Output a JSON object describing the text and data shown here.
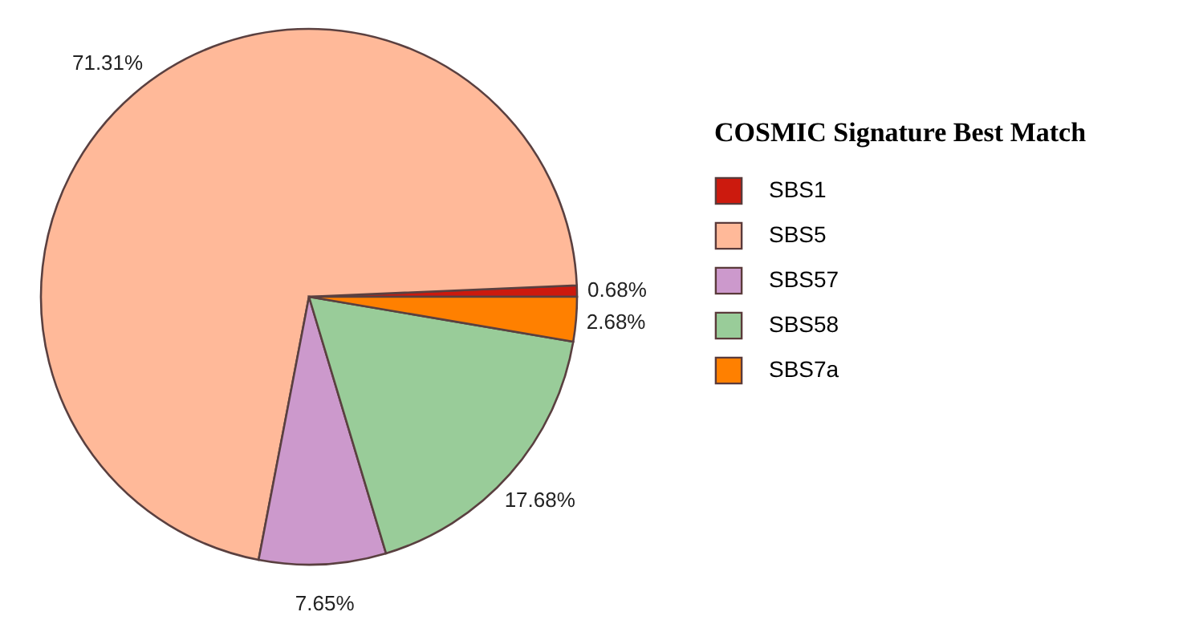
{
  "chart_data": {
    "type": "pie",
    "legend_title": "COSMIC Signature Best Match",
    "legend": "right",
    "categories": [
      "SBS1",
      "SBS5",
      "SBS57",
      "SBS58",
      "SBS7a"
    ],
    "values": [
      0.68,
      71.31,
      7.65,
      17.68,
      2.68
    ],
    "value_labels": [
      "0.68%",
      "71.31%",
      "7.65%",
      "17.68%",
      "2.68%"
    ],
    "colors": [
      "#cc1a0e",
      "#ffb999",
      "#cc99cc",
      "#99cc99",
      "#ff8000"
    ]
  }
}
